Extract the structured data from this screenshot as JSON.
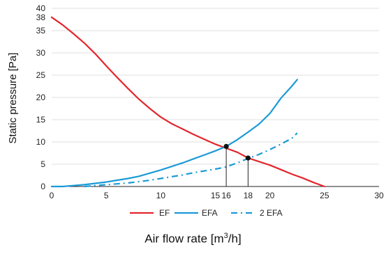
{
  "chart_data": {
    "type": "line",
    "ylabel": "Static pressure  [Pa]",
    "xlabel": {
      "main": "Air flow rate [m",
      "sup": "3",
      "tail": "/h]"
    },
    "xlim": [
      0,
      30
    ],
    "ylim": [
      0,
      40
    ],
    "xticks": [
      0,
      5,
      10,
      15,
      16,
      18,
      20,
      25,
      30
    ],
    "yticks": [
      0,
      5,
      10,
      15,
      20,
      25,
      30,
      35,
      38,
      40
    ],
    "grid": "horizontal",
    "legend_position": "bottom",
    "series": [
      {
        "name": "EF",
        "color": "#e3262c",
        "dash": "solid",
        "points": [
          [
            0,
            38
          ],
          [
            1,
            36.3
          ],
          [
            2,
            34.3
          ],
          [
            3,
            32.2
          ],
          [
            4,
            29.8
          ],
          [
            5,
            27.1
          ],
          [
            6,
            24.5
          ],
          [
            7,
            22
          ],
          [
            8,
            19.6
          ],
          [
            9,
            17.5
          ],
          [
            10,
            15.6
          ],
          [
            11,
            14.1
          ],
          [
            12,
            12.9
          ],
          [
            13,
            11.7
          ],
          [
            14,
            10.6
          ],
          [
            15,
            9.5
          ],
          [
            16,
            8.6
          ],
          [
            17,
            7.7
          ],
          [
            18,
            6.4
          ],
          [
            19,
            5.6
          ],
          [
            20,
            4.8
          ],
          [
            21,
            3.8
          ],
          [
            22,
            2.8
          ],
          [
            23,
            1.9
          ],
          [
            24,
            0.9
          ],
          [
            25,
            0
          ]
        ]
      },
      {
        "name": "EFA",
        "color": "#1a9ad6",
        "dash": "solid",
        "points": [
          [
            0,
            0
          ],
          [
            1,
            0
          ],
          [
            2,
            0.2
          ],
          [
            3,
            0.4
          ],
          [
            4,
            0.7
          ],
          [
            5,
            1
          ],
          [
            6,
            1.4
          ],
          [
            7,
            1.8
          ],
          [
            8,
            2.3
          ],
          [
            9,
            3
          ],
          [
            10,
            3.7
          ],
          [
            11,
            4.5
          ],
          [
            12,
            5.3
          ],
          [
            13,
            6.2
          ],
          [
            14,
            7.1
          ],
          [
            15,
            8
          ],
          [
            16,
            9
          ],
          [
            17,
            10.5
          ],
          [
            18,
            12.2
          ],
          [
            19,
            14
          ],
          [
            20,
            16.4
          ],
          [
            21,
            19.8
          ],
          [
            22,
            22.5
          ],
          [
            22.5,
            24
          ]
        ]
      },
      {
        "name": "2 EFA",
        "color": "#1a9ad6",
        "dash": "dashdot",
        "points": [
          [
            3,
            0
          ],
          [
            4,
            0.2
          ],
          [
            5,
            0.4
          ],
          [
            6,
            0.6
          ],
          [
            7,
            0.8
          ],
          [
            8,
            1.1
          ],
          [
            9,
            1.4
          ],
          [
            10,
            1.8
          ],
          [
            11,
            2.2
          ],
          [
            12,
            2.6
          ],
          [
            13,
            3.1
          ],
          [
            14,
            3.5
          ],
          [
            15,
            3.9
          ],
          [
            16,
            4.4
          ],
          [
            17,
            5.3
          ],
          [
            18,
            6.3
          ],
          [
            19,
            7.2
          ],
          [
            20,
            8.3
          ],
          [
            21,
            9.5
          ],
          [
            22,
            10.8
          ],
          [
            22.5,
            12
          ]
        ]
      }
    ],
    "markers": [
      [
        16,
        9
      ],
      [
        18,
        6.4
      ]
    ],
    "colors": {
      "grid": "#d4d4d4",
      "axis": "#222222",
      "marker": "#111111"
    }
  }
}
